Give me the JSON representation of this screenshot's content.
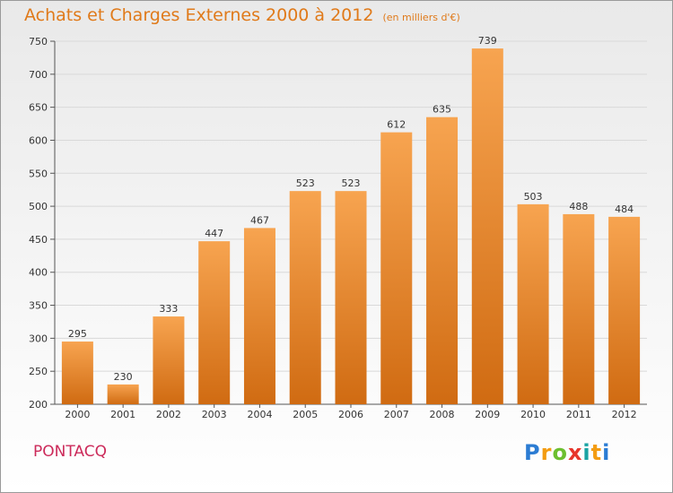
{
  "title": "Achats et Charges Externes 2000 à 2012",
  "subtitle": "(en milliers d'€)",
  "place": "PONTACQ",
  "logo": [
    "P",
    "r",
    "o",
    "x",
    "i",
    "t",
    "i"
  ],
  "colors": {
    "bar_top": "#f7a450",
    "bar_bottom": "#d06b12",
    "grid": "#d9d9d9",
    "title": "#e07a1a",
    "place": "#cc2a5a"
  },
  "chart_data": {
    "type": "bar",
    "categories": [
      "2000",
      "2001",
      "2002",
      "2003",
      "2004",
      "2005",
      "2006",
      "2007",
      "2008",
      "2009",
      "2010",
      "2011",
      "2012"
    ],
    "values": [
      295,
      230,
      333,
      447,
      467,
      523,
      523,
      612,
      635,
      739,
      503,
      488,
      484
    ],
    "title": "Achats et Charges Externes 2000 à 2012",
    "subtitle": "(en milliers d'€)",
    "ylim": [
      200,
      750
    ],
    "yticks": [
      200,
      250,
      300,
      350,
      400,
      450,
      500,
      550,
      600,
      650,
      700,
      750
    ],
    "grid": true
  }
}
